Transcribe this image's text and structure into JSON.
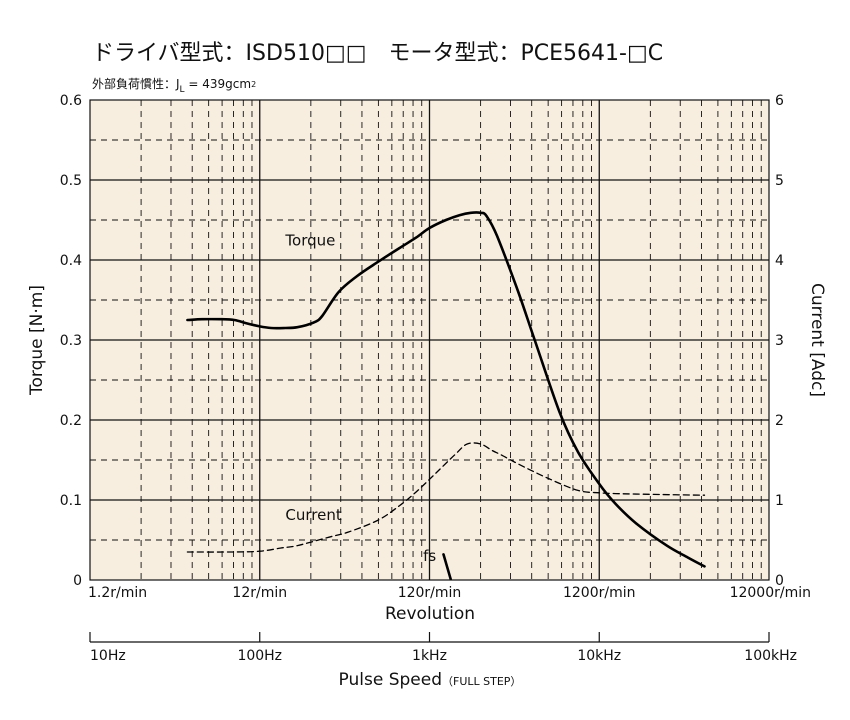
{
  "title": "ドライバ型式：ISD510□□　モータ型式：PCE5641-□C",
  "subtitle_prefix": "外部負荷慣性：J",
  "subtitle_sub": "L",
  "subtitle_value": " = 439gcm",
  "subtitle_sup": "2",
  "colors": {
    "plot_background": "#f8eee0",
    "grid_major": "#111111",
    "grid_minor": "#111111",
    "curve": "#000000"
  },
  "chart_data": {
    "type": "line",
    "x_scale": "log",
    "xlim": [
      1.2,
      12000
    ],
    "x_major_ticks": [
      1.2,
      12,
      120,
      1200,
      12000
    ],
    "x_tick_labels": [
      "1.2r/min",
      "12r/min",
      "120r/min",
      "1200r/min",
      "12000r/min"
    ],
    "xlabel": "Revolution",
    "ylabel": "Torque  [N·m]",
    "ylim": [
      0,
      0.6
    ],
    "y_ticks": [
      0,
      0.1,
      0.2,
      0.3,
      0.4,
      0.5,
      0.6
    ],
    "y_tick_labels": [
      "0",
      "0.1",
      "0.2",
      "0.3",
      "0.4",
      "0.5",
      "0.6"
    ],
    "y2label": "Current  [Adc]",
    "y2lim": [
      0,
      6
    ],
    "y2_ticks": [
      0,
      1,
      2,
      3,
      4,
      5,
      6
    ],
    "y2_tick_labels": [
      "0",
      "1",
      "2",
      "3",
      "4",
      "5",
      "6"
    ],
    "grid": true,
    "secondary_x": {
      "label_main": "Pulse Speed",
      "label_note": "（FULL STEP）",
      "ticks": [
        10,
        100,
        1000,
        10000,
        100000
      ],
      "tick_labels": [
        "10Hz",
        "100Hz",
        "1kHz",
        "10kHz",
        "100kHz"
      ]
    },
    "series": [
      {
        "name": "Torque",
        "axis": "left",
        "style": "solid",
        "x": [
          4.5,
          5.5,
          7,
          8.5,
          10,
          12,
          14,
          17,
          20,
          25,
          28,
          35,
          45,
          60,
          80,
          100,
          120,
          150,
          180,
          210,
          240,
          260,
          300,
          400,
          500,
          700,
          900,
          1200,
          1500,
          2000,
          3000,
          4000,
          5000
        ],
        "y": [
          0.325,
          0.326,
          0.326,
          0.325,
          0.321,
          0.317,
          0.315,
          0.315,
          0.316,
          0.322,
          0.33,
          0.36,
          0.38,
          0.398,
          0.415,
          0.428,
          0.44,
          0.45,
          0.456,
          0.459,
          0.459,
          0.455,
          0.43,
          0.36,
          0.3,
          0.21,
          0.16,
          0.12,
          0.095,
          0.07,
          0.043,
          0.028,
          0.017
        ]
      },
      {
        "name": "Current",
        "axis": "right",
        "style": "dashed",
        "x": [
          4.5,
          8,
          12,
          16,
          20,
          30,
          40,
          60,
          80,
          100,
          130,
          170,
          200,
          240,
          280,
          320,
          400,
          600,
          900,
          1200,
          1500,
          2500,
          5000
        ],
        "y": [
          0.35,
          0.35,
          0.36,
          0.4,
          0.43,
          0.53,
          0.6,
          0.75,
          0.93,
          1.1,
          1.33,
          1.57,
          1.7,
          1.7,
          1.62,
          1.56,
          1.45,
          1.27,
          1.12,
          1.09,
          1.08,
          1.07,
          1.06
        ]
      },
      {
        "name": "fs",
        "axis": "left",
        "style": "solid",
        "x": [
          145,
          160
        ],
        "y": [
          0.032,
          0.001
        ]
      }
    ],
    "annotations": [
      "Torque",
      "Current",
      "fs"
    ]
  }
}
